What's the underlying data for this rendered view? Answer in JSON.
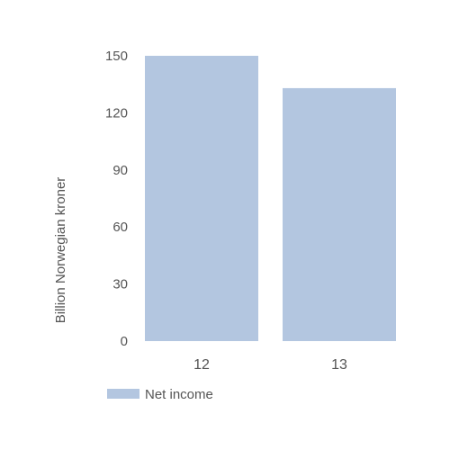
{
  "chart_data": {
    "type": "bar",
    "categories": [
      "12",
      "13"
    ],
    "series": [
      {
        "name": "Net income",
        "values": [
          150,
          133
        ],
        "color": "#b3c6e0"
      }
    ],
    "ylabel": "Billion Norwegian kroner",
    "xlabel": "",
    "ylim": [
      0,
      150
    ],
    "yticks": [
      0,
      30,
      60,
      90,
      120,
      150
    ],
    "grid": false,
    "legend": "bottom-left"
  }
}
